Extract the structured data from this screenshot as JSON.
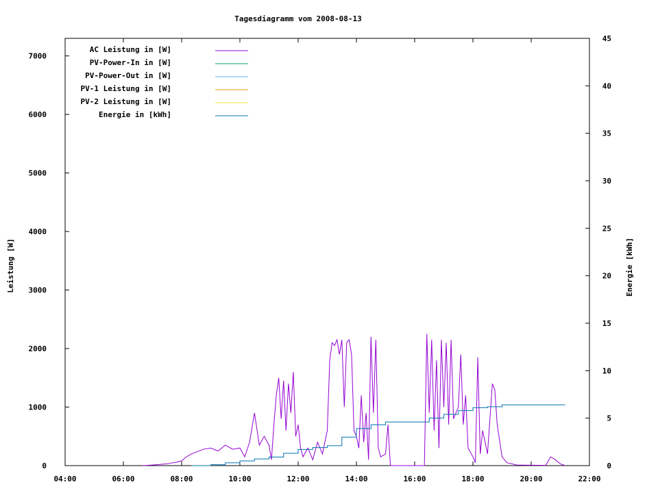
{
  "chart_data": {
    "type": "line",
    "title": "Tagesdiagramm vom 2008-08-13",
    "xlabel": "",
    "ylabel": "Leistung [W]",
    "y2label": "Energie [kWh]",
    "xlim": [
      "04:00",
      "22:00"
    ],
    "ylim": [
      0,
      7300
    ],
    "y2lim": [
      0,
      45
    ],
    "x_ticks": [
      "04:00",
      "06:00",
      "08:00",
      "10:00",
      "12:00",
      "14:00",
      "16:00",
      "18:00",
      "20:00",
      "22:00"
    ],
    "y_ticks": [
      0,
      1000,
      2000,
      3000,
      4000,
      5000,
      6000,
      7000
    ],
    "y2_ticks": [
      0,
      5,
      10,
      15,
      20,
      25,
      30,
      35,
      40,
      45
    ],
    "grid": false,
    "legend_position": "top-left",
    "series": [
      {
        "name": "AC Leistung in [W]",
        "axis": "y",
        "color": "#9400d3",
        "points": [
          [
            "06:40",
            0
          ],
          [
            "07:00",
            10
          ],
          [
            "07:30",
            30
          ],
          [
            "07:50",
            60
          ],
          [
            "08:00",
            80
          ],
          [
            "08:10",
            150
          ],
          [
            "08:20",
            200
          ],
          [
            "08:30",
            230
          ],
          [
            "08:45",
            280
          ],
          [
            "09:00",
            300
          ],
          [
            "09:15",
            250
          ],
          [
            "09:30",
            350
          ],
          [
            "09:45",
            280
          ],
          [
            "10:00",
            300
          ],
          [
            "10:10",
            150
          ],
          [
            "10:20",
            400
          ],
          [
            "10:30",
            900
          ],
          [
            "10:40",
            350
          ],
          [
            "10:50",
            500
          ],
          [
            "11:00",
            350
          ],
          [
            "11:05",
            100
          ],
          [
            "11:10",
            700
          ],
          [
            "11:15",
            1200
          ],
          [
            "11:20",
            1500
          ],
          [
            "11:25",
            800
          ],
          [
            "11:30",
            1450
          ],
          [
            "11:35",
            600
          ],
          [
            "11:40",
            1400
          ],
          [
            "11:45",
            900
          ],
          [
            "11:50",
            1600
          ],
          [
            "11:55",
            500
          ],
          [
            "12:00",
            700
          ],
          [
            "12:05",
            300
          ],
          [
            "12:10",
            150
          ],
          [
            "12:20",
            300
          ],
          [
            "12:30",
            100
          ],
          [
            "12:40",
            400
          ],
          [
            "12:50",
            200
          ],
          [
            "13:00",
            600
          ],
          [
            "13:05",
            1800
          ],
          [
            "13:10",
            2100
          ],
          [
            "13:15",
            2050
          ],
          [
            "13:20",
            2150
          ],
          [
            "13:25",
            1900
          ],
          [
            "13:30",
            2150
          ],
          [
            "13:35",
            1000
          ],
          [
            "13:40",
            2100
          ],
          [
            "13:45",
            2150
          ],
          [
            "13:50",
            1900
          ],
          [
            "13:55",
            600
          ],
          [
            "14:00",
            500
          ],
          [
            "14:05",
            300
          ],
          [
            "14:10",
            1200
          ],
          [
            "14:15",
            400
          ],
          [
            "14:20",
            900
          ],
          [
            "14:25",
            100
          ],
          [
            "14:30",
            2200
          ],
          [
            "14:35",
            900
          ],
          [
            "14:40",
            2150
          ],
          [
            "14:45",
            300
          ],
          [
            "14:50",
            150
          ],
          [
            "15:00",
            200
          ],
          [
            "15:05",
            700
          ],
          [
            "15:10",
            0
          ],
          [
            "16:20",
            0
          ],
          [
            "16:25",
            2250
          ],
          [
            "16:30",
            900
          ],
          [
            "16:35",
            2150
          ],
          [
            "16:40",
            600
          ],
          [
            "16:45",
            1800
          ],
          [
            "16:50",
            300
          ],
          [
            "16:55",
            2150
          ],
          [
            "17:00",
            1000
          ],
          [
            "17:05",
            2100
          ],
          [
            "17:10",
            700
          ],
          [
            "17:15",
            2150
          ],
          [
            "17:20",
            800
          ],
          [
            "17:30",
            1000
          ],
          [
            "17:35",
            1900
          ],
          [
            "17:40",
            700
          ],
          [
            "17:45",
            1200
          ],
          [
            "17:50",
            300
          ],
          [
            "18:00",
            150
          ],
          [
            "18:05",
            50
          ],
          [
            "18:10",
            1850
          ],
          [
            "18:15",
            200
          ],
          [
            "18:20",
            600
          ],
          [
            "18:30",
            200
          ],
          [
            "18:40",
            1400
          ],
          [
            "18:45",
            1300
          ],
          [
            "18:50",
            700
          ],
          [
            "19:00",
            150
          ],
          [
            "19:10",
            50
          ],
          [
            "19:30",
            10
          ],
          [
            "20:30",
            5
          ],
          [
            "20:40",
            150
          ],
          [
            "20:50",
            100
          ],
          [
            "21:00",
            30
          ],
          [
            "21:10",
            0
          ]
        ]
      },
      {
        "name": "PV-Power-In in [W]",
        "axis": "y",
        "color": "#009e73",
        "points": []
      },
      {
        "name": "PV-Power-Out in [W]",
        "axis": "y",
        "color": "#56b4e9",
        "points": []
      },
      {
        "name": "PV-1 Leistung in [W]",
        "axis": "y",
        "color": "#e69f00",
        "points": []
      },
      {
        "name": "PV-2 Leistung in [W]",
        "axis": "y",
        "color": "#f0e442",
        "points": []
      },
      {
        "name": "Energie in [kWh]",
        "axis": "y2",
        "color": "#0072b2",
        "points": [
          [
            "08:20",
            0
          ],
          [
            "09:00",
            0.1
          ],
          [
            "09:30",
            0.3
          ],
          [
            "10:00",
            0.5
          ],
          [
            "10:30",
            0.7
          ],
          [
            "11:00",
            0.9
          ],
          [
            "11:30",
            1.3
          ],
          [
            "12:00",
            1.7
          ],
          [
            "12:30",
            1.9
          ],
          [
            "13:00",
            2.1
          ],
          [
            "13:30",
            3.0
          ],
          [
            "14:00",
            3.9
          ],
          [
            "14:30",
            4.3
          ],
          [
            "15:00",
            4.6
          ],
          [
            "16:00",
            4.6
          ],
          [
            "16:30",
            5.0
          ],
          [
            "17:00",
            5.4
          ],
          [
            "17:30",
            5.8
          ],
          [
            "18:00",
            6.1
          ],
          [
            "18:30",
            6.2
          ],
          [
            "19:00",
            6.4
          ],
          [
            "20:00",
            6.4
          ],
          [
            "21:10",
            6.4
          ]
        ]
      }
    ]
  }
}
